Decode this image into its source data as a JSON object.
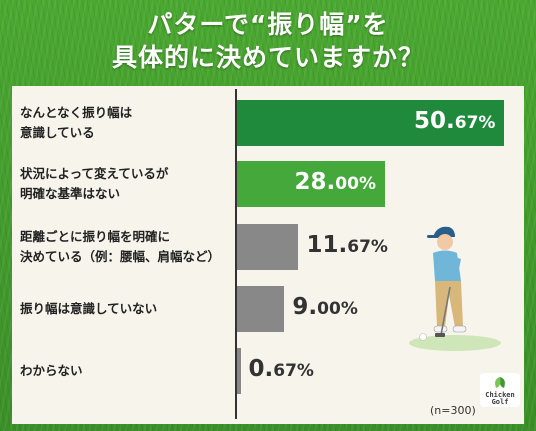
{
  "title_lines": [
    "パターで“振り幅”を",
    "具体的に決めていますか？"
  ],
  "chart_data": {
    "type": "bar",
    "orientation": "horizontal",
    "categories": [
      [
        "なんとなく振り幅は",
        "意識している"
      ],
      [
        "状況によって変えているが",
        "明確な基準はない"
      ],
      [
        "距離ごとに振り幅を明確に",
        "決めている（例：腰幅、肩幅など）"
      ],
      [
        "振り幅は意識していない"
      ],
      [
        "わからない"
      ]
    ],
    "values": [
      50.67,
      28.0,
      11.67,
      9.0,
      0.67
    ],
    "value_labels": [
      {
        "big": "50.",
        "small": "67%"
      },
      {
        "big": "28.",
        "small": "00%"
      },
      {
        "big": "11.",
        "small": "67%"
      },
      {
        "big": "9.",
        "small": "00%"
      },
      {
        "big": "0.",
        "small": "67%"
      }
    ],
    "bar_colors": [
      "#1f8a3b",
      "#45a83a",
      "#888888",
      "#888888",
      "#888888"
    ],
    "n_label": "(n=300)"
  },
  "logo": {
    "line1": "Chicken",
    "line2": "Golf"
  }
}
